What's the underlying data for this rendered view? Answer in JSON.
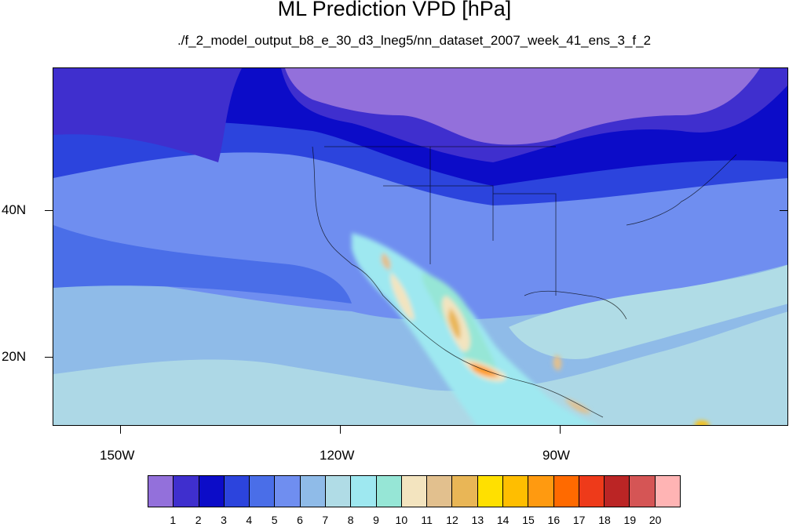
{
  "title": "ML Prediction VPD [hPa]",
  "subtitle": "./f_2_model_output_b8_e_30_d3_lneg5/nn_dataset_2007_week_41_ens_3_f_2",
  "lat_labels": [
    "40N",
    "20N"
  ],
  "lon_labels": [
    "150W",
    "120W",
    "90W"
  ],
  "colorbar": {
    "colors": [
      "#9370db",
      "#3f2fce",
      "#0c0cc8",
      "#2c44dd",
      "#4a6ee8",
      "#6f8ef0",
      "#8fbbe8",
      "#b0dce6",
      "#9ee8f0",
      "#96e6d6",
      "#f3e4bf",
      "#e2c08e",
      "#e9b656",
      "#ffe000",
      "#ffbe00",
      "#ff9a10",
      "#ff6a00",
      "#ee3a1a",
      "#bb2525",
      "#d55555",
      "#ffb4b4"
    ],
    "labels": [
      "1",
      "2",
      "3",
      "4",
      "5",
      "6",
      "7",
      "8",
      "9",
      "10",
      "11",
      "12",
      "13",
      "14",
      "15",
      "16",
      "17",
      "18",
      "19",
      "20"
    ]
  }
}
